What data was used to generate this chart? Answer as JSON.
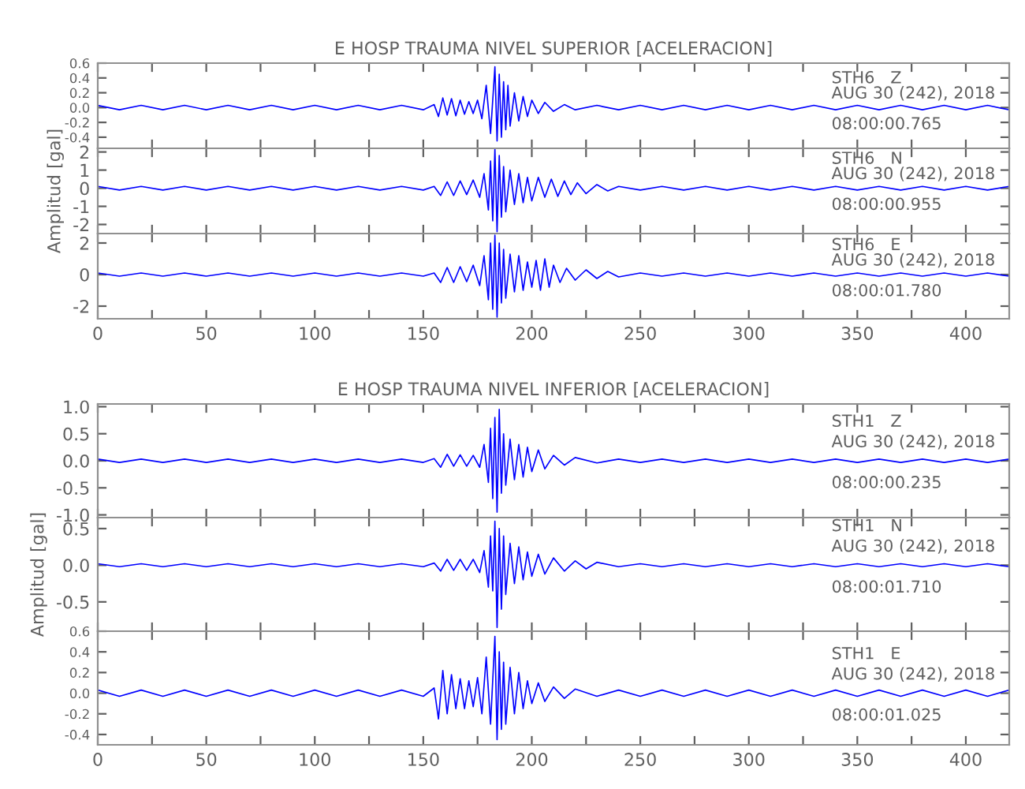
{
  "chart_data": [
    {
      "type": "line",
      "title": "E HOSP TRAUMA NIVEL SUPERIOR [ACELERACION]",
      "xlim": [
        0,
        420
      ],
      "xticks": [
        0,
        {
          "value": 25,
          "label": null
        },
        50,
        {
          "value": 75,
          "label": null
        },
        100,
        {
          "value": 125,
          "label": null
        },
        150,
        {
          "value": 175,
          "label": null
        },
        200,
        {
          "value": 225,
          "label": null
        },
        250,
        {
          "value": 275,
          "label": null
        },
        300,
        {
          "value": 325,
          "label": null
        },
        350,
        {
          "value": 375,
          "label": null
        },
        400
      ],
      "ylim": [
        -0.55,
        0.6
      ],
      "yticks": [
        -0.4,
        -0.2,
        {
          "value": 0,
          "label": "0.0"
        },
        0.2,
        0.4,
        0.6
      ],
      "tick_labels": "y",
      "annotations": [
        "STH6   Z",
        "AUG 30 (242), 2018",
        "08:00:00.765"
      ],
      "series": [
        {
          "color": "#0000ff",
          "x": [
            0,
            10,
            20,
            30,
            40,
            50,
            60,
            70,
            80,
            90,
            100,
            110,
            120,
            130,
            140,
            150,
            155,
            157,
            159,
            161,
            163,
            165,
            167,
            169,
            171,
            173,
            175,
            177,
            179,
            181,
            183,
            184,
            185,
            186,
            187,
            188,
            189,
            190,
            192,
            194,
            196,
            198,
            200,
            203,
            206,
            210,
            215,
            220,
            230,
            240,
            250,
            260,
            270,
            280,
            290,
            300,
            310,
            320,
            330,
            340,
            350,
            360,
            370,
            380,
            390,
            400,
            410,
            420
          ],
          "values": [
            0.03,
            -0.03,
            0.03,
            -0.03,
            0.03,
            -0.03,
            0.03,
            -0.03,
            0.03,
            -0.03,
            0.03,
            -0.03,
            0.03,
            -0.03,
            0.03,
            -0.03,
            0.04,
            -0.12,
            0.13,
            -0.1,
            0.12,
            -0.11,
            0.1,
            -0.09,
            0.08,
            -0.08,
            0.1,
            -0.15,
            0.3,
            -0.35,
            0.55,
            -0.45,
            0.45,
            -0.4,
            0.35,
            -0.3,
            0.3,
            -0.25,
            0.2,
            -0.18,
            0.15,
            -0.12,
            0.1,
            -0.08,
            0.07,
            -0.05,
            0.04,
            -0.03,
            0.03,
            -0.03,
            0.03,
            -0.03,
            0.03,
            -0.03,
            0.03,
            -0.03,
            0.03,
            -0.03,
            0.03,
            -0.03,
            0.03,
            -0.03,
            0.03,
            -0.03,
            0.03,
            -0.03,
            0.03,
            -0.03
          ]
        }
      ]
    },
    {
      "type": "line",
      "ylabel": "Amplitud [gal]",
      "xlim": [
        0,
        420
      ],
      "xticks": [
        0,
        {
          "value": 25,
          "label": null
        },
        50,
        {
          "value": 75,
          "label": null
        },
        100,
        {
          "value": 125,
          "label": null
        },
        150,
        {
          "value": 175,
          "label": null
        },
        200,
        {
          "value": 225,
          "label": null
        },
        250,
        {
          "value": 275,
          "label": null
        },
        300,
        {
          "value": 325,
          "label": null
        },
        350,
        {
          "value": 375,
          "label": null
        },
        400
      ],
      "ylim": [
        -2.5,
        2.2
      ],
      "yticks": [
        -2,
        -1,
        0,
        1,
        2
      ],
      "tick_labels": "y",
      "annotations": [
        "STH6   N",
        "AUG 30 (242), 2018",
        "08:00:00.955"
      ],
      "series": [
        {
          "color": "#0000ff",
          "x": [
            0,
            10,
            20,
            30,
            40,
            50,
            60,
            70,
            80,
            90,
            100,
            110,
            120,
            130,
            140,
            150,
            155,
            158,
            161,
            164,
            167,
            170,
            173,
            176,
            178,
            180,
            181,
            182,
            183,
            184,
            185,
            186,
            187,
            188,
            190,
            192,
            194,
            196,
            198,
            200,
            203,
            206,
            209,
            212,
            215,
            218,
            221,
            225,
            230,
            235,
            240,
            250,
            260,
            270,
            280,
            290,
            300,
            310,
            320,
            330,
            340,
            350,
            360,
            370,
            380,
            390,
            400,
            410,
            420
          ],
          "values": [
            0.1,
            -0.1,
            0.1,
            -0.1,
            0.1,
            -0.1,
            0.1,
            -0.1,
            0.1,
            -0.1,
            0.1,
            -0.1,
            0.1,
            -0.1,
            0.1,
            -0.1,
            0.1,
            -0.4,
            0.35,
            -0.4,
            0.4,
            -0.35,
            0.45,
            -0.5,
            0.8,
            -1.2,
            1.5,
            -1.8,
            2.2,
            -2.4,
            1.8,
            -1.6,
            1.2,
            -1.3,
            1.0,
            -0.9,
            0.8,
            -0.8,
            0.6,
            -0.7,
            0.6,
            -0.5,
            0.5,
            -0.45,
            0.4,
            -0.35,
            0.3,
            -0.3,
            0.2,
            -0.15,
            0.1,
            -0.1,
            0.1,
            -0.1,
            0.1,
            -0.1,
            0.1,
            -0.1,
            0.1,
            -0.1,
            0.1,
            -0.1,
            0.1,
            -0.1,
            0.1,
            -0.1,
            0.1,
            -0.1,
            0.1
          ]
        }
      ]
    },
    {
      "type": "line",
      "xlim": [
        0,
        420
      ],
      "xticks": [
        0,
        {
          "value": 25,
          "label": null
        },
        50,
        {
          "value": 75,
          "label": null
        },
        100,
        {
          "value": 125,
          "label": null
        },
        150,
        {
          "value": 175,
          "label": null
        },
        200,
        {
          "value": 225,
          "label": null
        },
        250,
        {
          "value": 275,
          "label": null
        },
        300,
        {
          "value": 325,
          "label": null
        },
        350,
        {
          "value": 375,
          "label": null
        },
        400
      ],
      "ylim": [
        -2.8,
        2.6
      ],
      "yticks": [
        -2,
        0,
        2
      ],
      "annotations": [
        "STH6   E",
        "AUG 30 (242), 2018",
        "08:00:01.780"
      ],
      "series": [
        {
          "color": "#0000ff",
          "x": [
            0,
            10,
            20,
            30,
            40,
            50,
            60,
            70,
            80,
            90,
            100,
            110,
            120,
            130,
            140,
            150,
            155,
            158,
            161,
            164,
            167,
            170,
            173,
            176,
            178,
            180,
            181,
            182,
            183,
            184,
            185,
            186,
            187,
            188,
            190,
            192,
            194,
            196,
            198,
            200,
            202,
            204,
            206,
            208,
            210,
            213,
            216,
            220,
            225,
            230,
            235,
            240,
            250,
            260,
            270,
            280,
            290,
            300,
            310,
            320,
            330,
            340,
            350,
            360,
            370,
            380,
            390,
            400,
            410,
            420
          ],
          "values": [
            0.1,
            -0.1,
            0.1,
            -0.1,
            0.1,
            -0.1,
            0.1,
            -0.1,
            0.1,
            -0.1,
            0.1,
            -0.1,
            0.1,
            -0.1,
            0.1,
            -0.1,
            0.1,
            -0.5,
            0.45,
            -0.5,
            0.5,
            -0.45,
            0.6,
            -0.7,
            1.2,
            -1.6,
            2.0,
            -2.2,
            2.5,
            -2.7,
            2.0,
            -1.8,
            1.6,
            -1.5,
            1.3,
            -1.1,
            1.2,
            -1.0,
            0.8,
            -0.8,
            0.9,
            -1.0,
            1.0,
            -0.8,
            0.6,
            -0.5,
            0.4,
            -0.35,
            0.3,
            -0.25,
            0.2,
            -0.15,
            0.1,
            -0.1,
            0.1,
            -0.1,
            0.1,
            -0.1,
            0.1,
            -0.1,
            0.1,
            -0.1,
            0.1,
            -0.1,
            0.1,
            -0.1,
            0.1,
            -0.1,
            0.1,
            -0.1
          ]
        }
      ]
    },
    {
      "type": "line",
      "title": "E HOSP TRAUMA NIVEL INFERIOR [ACELERACION]",
      "xlim": [
        0,
        420
      ],
      "xticks": [
        0,
        {
          "value": 25,
          "label": null
        },
        50,
        {
          "value": 75,
          "label": null
        },
        100,
        {
          "value": 125,
          "label": null
        },
        150,
        {
          "value": 175,
          "label": null
        },
        200,
        {
          "value": 225,
          "label": null
        },
        250,
        {
          "value": 275,
          "label": null
        },
        300,
        {
          "value": 325,
          "label": null
        },
        350,
        {
          "value": 375,
          "label": null
        },
        400
      ],
      "ylim": [
        -1.05,
        1.05
      ],
      "yticks": [
        {
          "value": -1,
          "label": "-1.0"
        },
        -0.5,
        {
          "value": 0,
          "label": "0.0"
        },
        0.5,
        {
          "value": 1,
          "label": "1.0"
        }
      ],
      "tick_labels": "y",
      "annotations": [
        "STH1   Z",
        "AUG 30 (242), 2018",
        "08:00:00.235"
      ],
      "series": [
        {
          "color": "#0000ff",
          "x": [
            0,
            10,
            20,
            30,
            40,
            50,
            60,
            70,
            80,
            90,
            100,
            110,
            120,
            130,
            140,
            150,
            155,
            158,
            161,
            164,
            167,
            170,
            173,
            176,
            178,
            180,
            181,
            182,
            183,
            184,
            185,
            186,
            187,
            188,
            190,
            192,
            194,
            196,
            198,
            200,
            203,
            206,
            210,
            215,
            220,
            230,
            240,
            250,
            260,
            270,
            280,
            290,
            300,
            310,
            320,
            330,
            340,
            350,
            360,
            370,
            380,
            390,
            400,
            410,
            420
          ],
          "values": [
            0.03,
            -0.03,
            0.03,
            -0.03,
            0.03,
            -0.03,
            0.03,
            -0.03,
            0.03,
            -0.03,
            0.03,
            -0.03,
            0.03,
            -0.03,
            0.03,
            -0.03,
            0.04,
            -0.12,
            0.12,
            -0.1,
            0.11,
            -0.1,
            0.1,
            -0.12,
            0.3,
            -0.4,
            0.6,
            -0.7,
            0.8,
            -0.95,
            0.95,
            -0.6,
            0.5,
            -0.45,
            0.4,
            -0.35,
            0.3,
            -0.3,
            0.25,
            -0.2,
            0.2,
            -0.15,
            0.1,
            -0.08,
            0.06,
            -0.04,
            0.03,
            -0.03,
            0.03,
            -0.03,
            0.03,
            -0.03,
            0.03,
            -0.03,
            0.03,
            -0.03,
            0.03,
            -0.03,
            0.03,
            -0.03,
            0.03,
            -0.03,
            0.03,
            -0.03,
            0.03
          ]
        }
      ]
    },
    {
      "type": "line",
      "ylabel": "Amplitud [gal]",
      "xlim": [
        0,
        420
      ],
      "xticks": [
        0,
        {
          "value": 25,
          "label": null
        },
        50,
        {
          "value": 75,
          "label": null
        },
        100,
        {
          "value": 125,
          "label": null
        },
        150,
        {
          "value": 175,
          "label": null
        },
        200,
        {
          "value": 225,
          "label": null
        },
        250,
        {
          "value": 275,
          "label": null
        },
        300,
        {
          "value": 325,
          "label": null
        },
        350,
        {
          "value": 375,
          "label": null
        },
        400
      ],
      "ylim": [
        -0.9,
        0.65
      ],
      "yticks": [
        -0.5,
        {
          "value": 0,
          "label": "0.0"
        },
        0.5
      ],
      "tick_labels": "y",
      "annotations": [
        "STH1   N",
        "AUG 30 (242), 2018",
        "08:00:01.710"
      ],
      "series": [
        {
          "color": "#0000ff",
          "x": [
            0,
            10,
            20,
            30,
            40,
            50,
            60,
            70,
            80,
            90,
            100,
            110,
            120,
            130,
            140,
            150,
            155,
            158,
            161,
            164,
            167,
            170,
            173,
            176,
            178,
            180,
            181,
            182,
            183,
            184,
            185,
            186,
            187,
            188,
            190,
            192,
            194,
            196,
            198,
            200,
            203,
            206,
            210,
            215,
            220,
            225,
            230,
            240,
            250,
            260,
            270,
            280,
            290,
            300,
            310,
            320,
            330,
            340,
            350,
            360,
            370,
            380,
            390,
            400,
            410,
            420
          ],
          "values": [
            0.02,
            -0.02,
            0.02,
            -0.02,
            0.02,
            -0.02,
            0.02,
            -0.02,
            0.02,
            -0.02,
            0.02,
            -0.02,
            0.02,
            -0.02,
            0.02,
            -0.02,
            0.03,
            -0.08,
            0.08,
            -0.07,
            0.08,
            -0.07,
            0.08,
            -0.1,
            0.2,
            -0.3,
            0.4,
            -0.35,
            0.6,
            -0.85,
            0.5,
            -0.6,
            0.4,
            -0.4,
            0.3,
            -0.25,
            0.25,
            -0.2,
            0.18,
            -0.15,
            0.15,
            -0.12,
            0.1,
            -0.08,
            0.06,
            -0.05,
            0.04,
            -0.02,
            0.02,
            -0.02,
            0.02,
            -0.02,
            0.02,
            -0.02,
            0.02,
            -0.02,
            0.02,
            -0.02,
            0.02,
            -0.02,
            0.02,
            -0.02,
            0.02,
            -0.02,
            0.02,
            -0.02
          ]
        }
      ]
    },
    {
      "type": "line",
      "xlim": [
        0,
        420
      ],
      "xticks": [
        0,
        {
          "value": 25,
          "label": null
        },
        50,
        {
          "value": 75,
          "label": null
        },
        100,
        {
          "value": 125,
          "label": null
        },
        150,
        {
          "value": 175,
          "label": null
        },
        200,
        {
          "value": 225,
          "label": null
        },
        250,
        {
          "value": 275,
          "label": null
        },
        300,
        {
          "value": 325,
          "label": null
        },
        350,
        {
          "value": 375,
          "label": null
        },
        400
      ],
      "ylim": [
        -0.5,
        0.6
      ],
      "yticks": [
        -0.4,
        -0.2,
        {
          "value": 0,
          "label": "0.0"
        },
        0.2,
        0.4,
        0.6
      ],
      "annotations": [
        "STH1   E",
        "AUG 30 (242), 2018",
        "08:00:01.025"
      ],
      "series": [
        {
          "color": "#0000ff",
          "x": [
            0,
            10,
            20,
            30,
            40,
            50,
            60,
            70,
            80,
            90,
            100,
            110,
            120,
            130,
            140,
            150,
            155,
            157,
            159,
            161,
            163,
            165,
            167,
            169,
            171,
            173,
            175,
            177,
            179,
            181,
            183,
            184,
            185,
            186,
            187,
            188,
            190,
            192,
            194,
            196,
            198,
            200,
            203,
            206,
            210,
            215,
            220,
            230,
            240,
            250,
            260,
            270,
            280,
            290,
            300,
            310,
            320,
            330,
            340,
            350,
            360,
            370,
            380,
            390,
            400,
            410,
            420
          ],
          "values": [
            0.03,
            -0.03,
            0.03,
            -0.03,
            0.03,
            -0.03,
            0.03,
            -0.03,
            0.03,
            -0.03,
            0.03,
            -0.03,
            0.03,
            -0.03,
            0.03,
            -0.03,
            0.05,
            -0.25,
            0.22,
            -0.2,
            0.18,
            -0.15,
            0.14,
            -0.15,
            0.12,
            -0.13,
            0.15,
            -0.2,
            0.35,
            -0.3,
            0.55,
            -0.45,
            0.4,
            -0.35,
            0.3,
            -0.3,
            0.25,
            -0.2,
            0.2,
            -0.15,
            0.12,
            -0.1,
            0.1,
            -0.08,
            0.06,
            -0.05,
            0.04,
            -0.03,
            0.03,
            -0.03,
            0.03,
            -0.03,
            0.03,
            -0.03,
            0.03,
            -0.03,
            0.03,
            -0.03,
            0.03,
            -0.03,
            0.03,
            -0.03,
            0.03,
            -0.03,
            0.03,
            -0.03,
            0.03
          ]
        }
      ]
    }
  ]
}
